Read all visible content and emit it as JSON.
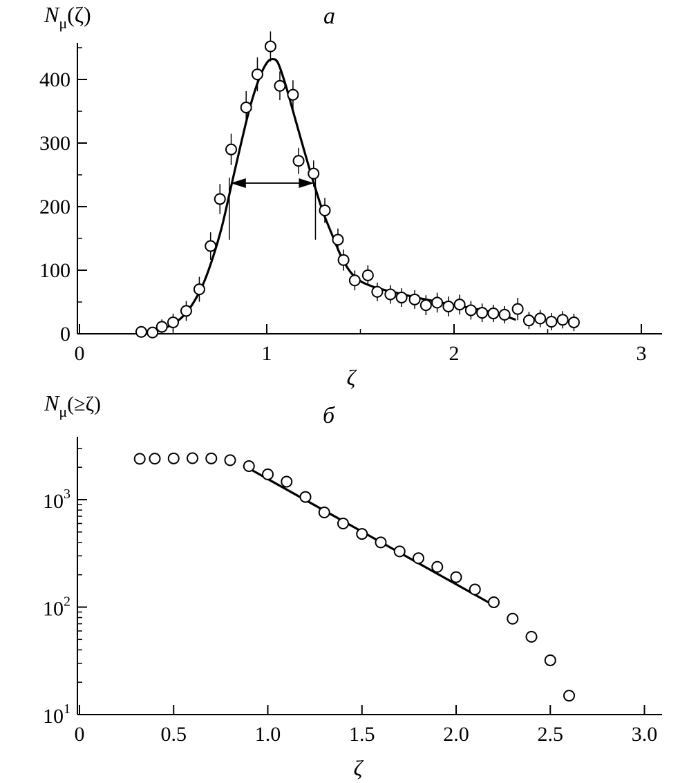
{
  "colors": {
    "ink": "#000000",
    "marker_fill": "#ffffff"
  },
  "chart_data": [
    {
      "type": "scatter",
      "panel_label": "a",
      "ylabel": {
        "main": "N",
        "sub": "μ",
        "arg": "(ζ)"
      },
      "xlabel": "ζ",
      "xlim": [
        0,
        3.1
      ],
      "ylim": [
        0,
        460
      ],
      "x_ticks": [
        0,
        1,
        2,
        3
      ],
      "x_tick_labels": [
        "0",
        "1",
        "2",
        "3"
      ],
      "y_ticks": [
        0,
        100,
        200,
        300,
        400
      ],
      "y_tick_labels": [
        "0",
        "100",
        "200",
        "300",
        "400"
      ],
      "grid": false,
      "points": {
        "x": [
          0.33,
          0.39,
          0.44,
          0.5,
          0.57,
          0.64,
          0.7,
          0.75,
          0.81,
          0.89,
          0.95,
          1.02,
          1.07,
          1.14,
          1.17,
          1.25,
          1.31,
          1.38,
          1.41,
          1.47,
          1.54,
          1.59,
          1.66,
          1.72,
          1.79,
          1.85,
          1.91,
          1.97,
          2.03,
          2.09,
          2.15,
          2.21,
          2.27,
          2.34,
          2.4,
          2.46,
          2.52,
          2.58,
          2.64
        ],
        "y": [
          3,
          2,
          11,
          18,
          36,
          70,
          138,
          212,
          290,
          356,
          408,
          452,
          390,
          376,
          272,
          252,
          194,
          148,
          116,
          84,
          92,
          66,
          62,
          57,
          54,
          45,
          49,
          43,
          46,
          37,
          33,
          32,
          30,
          39,
          21,
          24,
          19,
          22,
          18
        ],
        "yerr": [
          0,
          0,
          4,
          6,
          8,
          12,
          14,
          16,
          17,
          18,
          19,
          16,
          15,
          15,
          13,
          13,
          12,
          10,
          9,
          8,
          8,
          7,
          7,
          7,
          7,
          8,
          8,
          8,
          8,
          7,
          7,
          6,
          6,
          10,
          6,
          6,
          6,
          6,
          6
        ]
      },
      "fit_curve": {
        "x": [
          0.33,
          0.4,
          0.47,
          0.54,
          0.6,
          0.66,
          0.71,
          0.76,
          0.81,
          0.86,
          0.91,
          0.96,
          1.0,
          1.03,
          1.06,
          1.1,
          1.15,
          1.2,
          1.25,
          1.3,
          1.35,
          1.4,
          1.45,
          1.5,
          1.55,
          1.6,
          1.7,
          1.8,
          1.9,
          2.0,
          2.1,
          2.2,
          2.28,
          2.33
        ],
        "y": [
          2,
          5,
          11,
          24,
          45,
          78,
          118,
          168,
          232,
          296,
          356,
          402,
          426,
          432,
          426,
          392,
          340,
          288,
          238,
          192,
          155,
          120,
          96,
          83,
          76,
          71,
          64,
          57,
          51,
          45,
          40,
          34,
          27,
          22
        ]
      },
      "fwhm_marker": {
        "x_left": 0.8,
        "x_right": 1.26,
        "y_arrow": 237,
        "y_bottom": 148
      }
    },
    {
      "type": "scatter",
      "panel_label": "б",
      "ylabel": {
        "main": "N",
        "sub": "μ",
        "arg": "(≥ζ)"
      },
      "xlabel": "ζ",
      "yscale": "log",
      "xlim": [
        0,
        3.1
      ],
      "ylim": [
        10,
        3980
      ],
      "x_ticks": [
        0,
        0.5,
        1.0,
        1.5,
        2.0,
        2.5,
        3.0
      ],
      "x_tick_labels": [
        "0",
        "0.5",
        "1.0",
        "1.5",
        "2.0",
        "2.5",
        "3.0"
      ],
      "y_major_ticks": [
        10,
        100,
        1000
      ],
      "y_tick_labels": [
        {
          "base": "10",
          "exp": "1"
        },
        {
          "base": "10",
          "exp": "2"
        },
        {
          "base": "10",
          "exp": "3"
        }
      ],
      "grid": false,
      "points": {
        "x": [
          0.32,
          0.4,
          0.5,
          0.6,
          0.7,
          0.8,
          0.9,
          1.0,
          1.1,
          1.2,
          1.3,
          1.4,
          1.5,
          1.6,
          1.7,
          1.8,
          1.9,
          2.0,
          2.1,
          2.2,
          2.3,
          2.4,
          2.5,
          2.6
        ],
        "y": [
          2400,
          2410,
          2420,
          2430,
          2420,
          2330,
          2050,
          1720,
          1470,
          1060,
          760,
          600,
          480,
          400,
          330,
          285,
          237,
          190,
          146,
          111,
          78,
          53,
          32,
          15
        ]
      },
      "fit_line": {
        "x": [
          0.9,
          2.2
        ],
        "y": [
          1950,
          104
        ]
      }
    }
  ]
}
